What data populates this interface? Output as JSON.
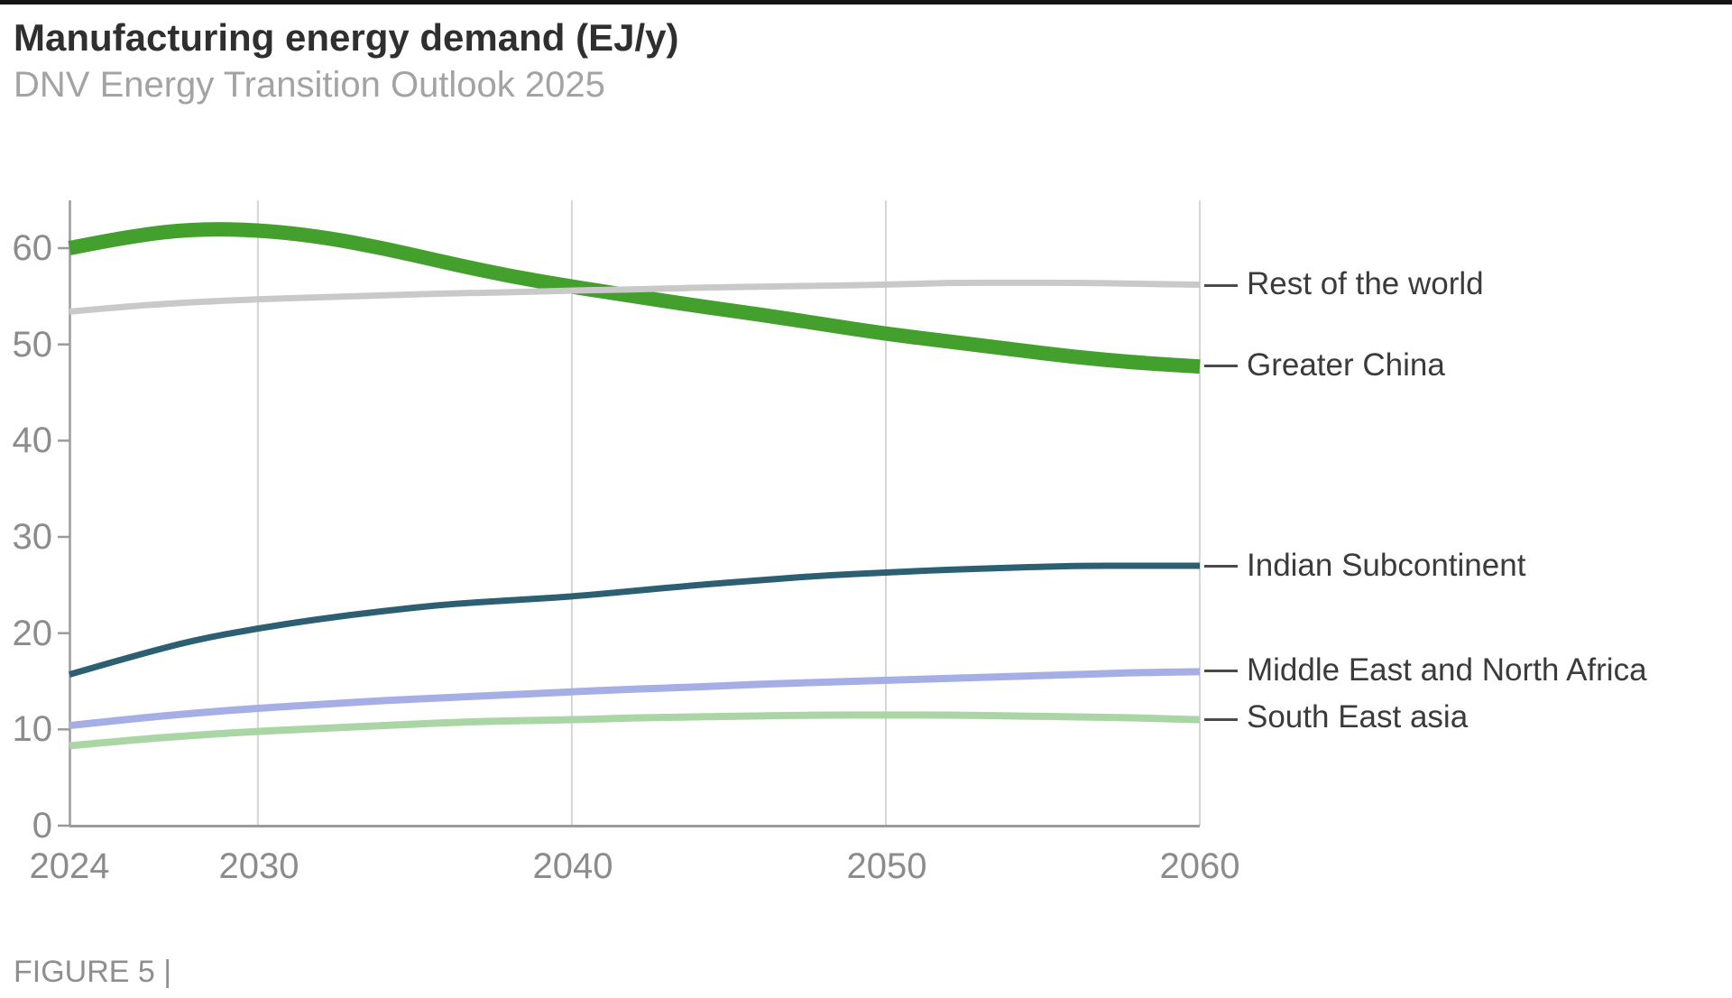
{
  "header": {
    "title": "Manufacturing energy demand (EJ/y)",
    "subtitle": "DNV Energy Transition Outlook 2025"
  },
  "footer": {
    "figure_label": "FIGURE 5 |"
  },
  "chart_data": {
    "type": "line",
    "title": "Manufacturing energy demand (EJ/y)",
    "subtitle": "DNV Energy Transition Outlook 2025",
    "xlabel": "",
    "ylabel": "",
    "xlim": [
      2024,
      2060
    ],
    "ylim": [
      0,
      64
    ],
    "grid": "vertical-only",
    "grid_years": [
      2030,
      2040,
      2050,
      2060
    ],
    "legend_position": "right-edge-labels",
    "x": [
      2024,
      2026,
      2028,
      2030,
      2032,
      2034,
      2036,
      2038,
      2040,
      2042,
      2044,
      2046,
      2048,
      2050,
      2052,
      2054,
      2056,
      2058,
      2060
    ],
    "x_tick_labels": [
      "2024",
      "2030",
      "2040",
      "2050",
      "2060"
    ],
    "x_tick_years": [
      2024,
      2030,
      2040,
      2050,
      2060
    ],
    "y_ticks": [
      0,
      10,
      20,
      30,
      40,
      50,
      60
    ],
    "y_tick_labels": [
      "0",
      "10",
      "20",
      "30",
      "40",
      "50",
      "60"
    ],
    "series": [
      {
        "name": "Rest of the world",
        "color": "#c9c9c9",
        "stroke_width": 7,
        "end_value": 56.2,
        "values": [
          53.4,
          54.0,
          54.4,
          54.7,
          54.9,
          55.1,
          55.3,
          55.4,
          55.6,
          55.7,
          55.9,
          56.0,
          56.1,
          56.2,
          56.4,
          56.4,
          56.4,
          56.3,
          56.2
        ]
      },
      {
        "name": "Greater China",
        "color": "#43a02c",
        "stroke_width": 16,
        "end_value": 47.7,
        "values": [
          60.0,
          61.3,
          62.0,
          61.9,
          61.2,
          60.0,
          58.5,
          57.1,
          56.0,
          55.0,
          54.0,
          53.1,
          52.1,
          51.1,
          50.3,
          49.5,
          48.7,
          48.1,
          47.7
        ]
      },
      {
        "name": "Indian Subcontinent",
        "color": "#2d5f72",
        "stroke_width": 7,
        "end_value": 27.0,
        "values": [
          15.7,
          17.6,
          19.3,
          20.5,
          21.5,
          22.3,
          23.0,
          23.4,
          23.8,
          24.4,
          25.0,
          25.5,
          26.0,
          26.3,
          26.6,
          26.8,
          27.0,
          27.0,
          27.0
        ]
      },
      {
        "name": "Middle East and North Africa",
        "color": "#a6aee6",
        "stroke_width": 8,
        "end_value": 16.0,
        "values": [
          10.4,
          11.1,
          11.7,
          12.2,
          12.6,
          13.0,
          13.3,
          13.6,
          13.9,
          14.2,
          14.4,
          14.7,
          14.9,
          15.1,
          15.3,
          15.5,
          15.7,
          15.9,
          16.0
        ]
      },
      {
        "name": "South East asia",
        "color": "#a9d6a4",
        "stroke_width": 8,
        "end_value": 11.0,
        "values": [
          8.3,
          8.9,
          9.4,
          9.8,
          10.1,
          10.4,
          10.7,
          10.9,
          11.0,
          11.2,
          11.3,
          11.4,
          11.5,
          11.5,
          11.5,
          11.4,
          11.3,
          11.2,
          11.0
        ]
      }
    ],
    "draw_order": [
      1,
      0,
      2,
      3,
      4
    ],
    "colors": {
      "gridline": "#d6d6d6",
      "axis": "#9b9b9b",
      "tick_label": "#8c8c8c",
      "series_label_text": "#3b3b3b",
      "connector": "#4a4a4a"
    }
  }
}
